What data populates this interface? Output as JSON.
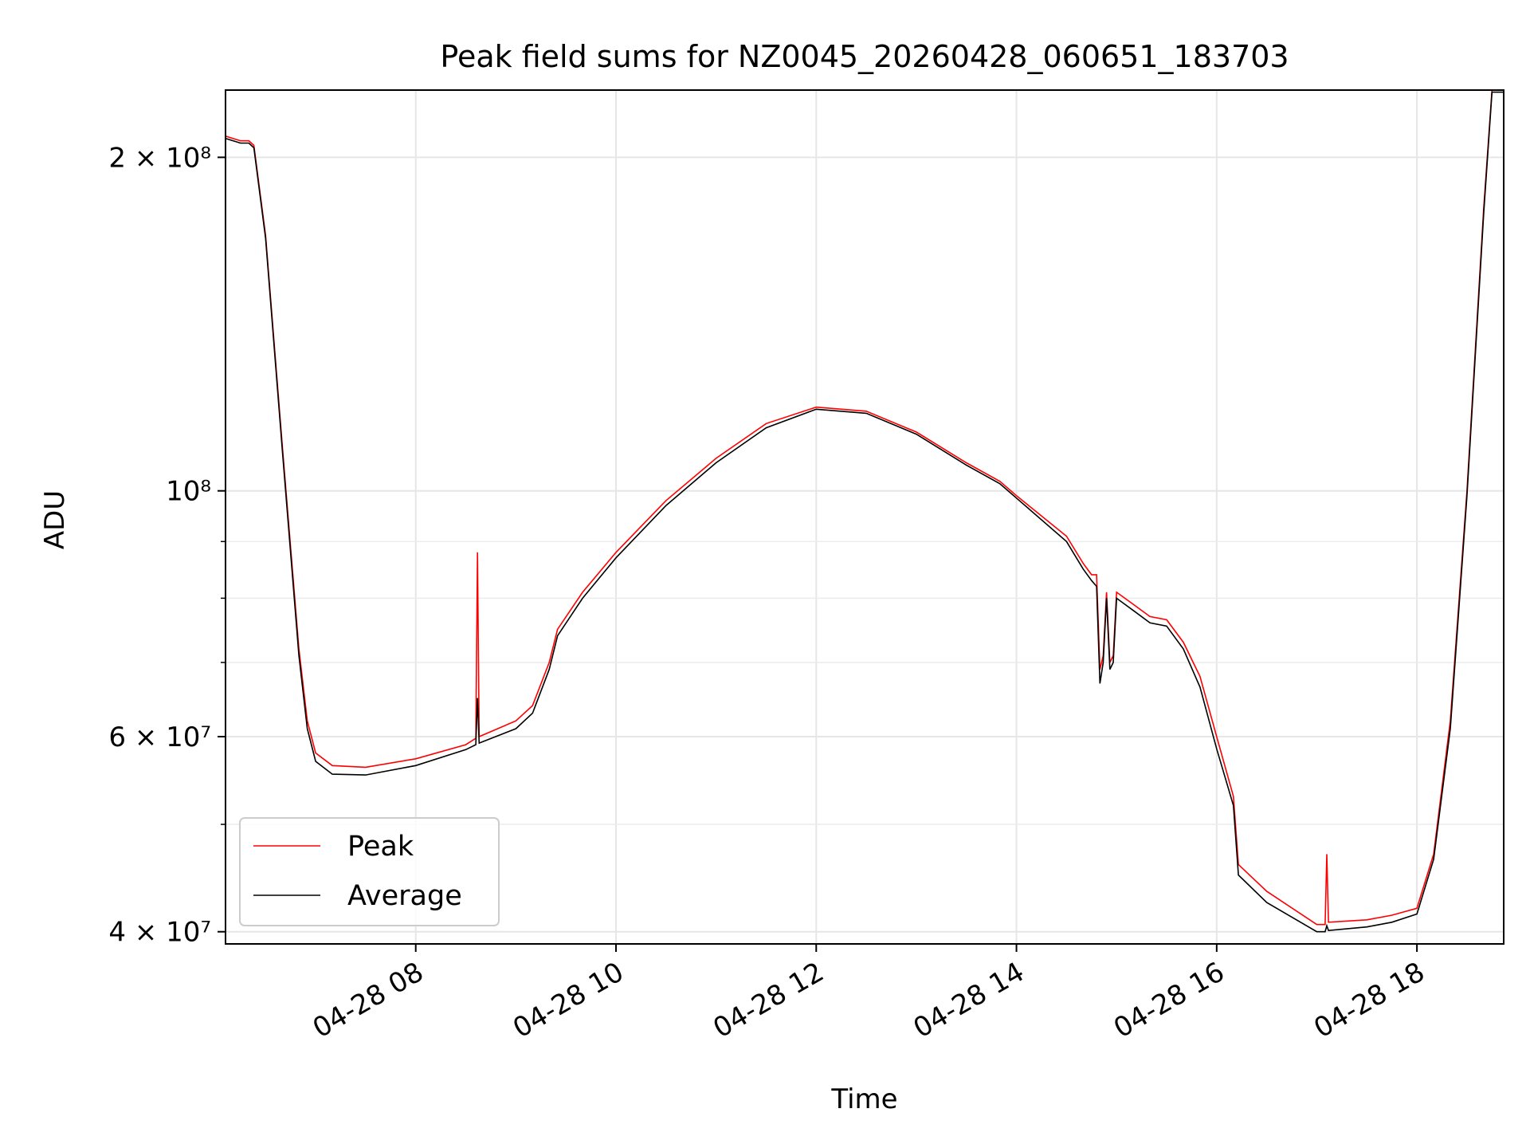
{
  "chart_data": {
    "type": "line",
    "title": "Peak field sums for NZ0045_20260428_060651_183703",
    "xlabel": "Time",
    "ylabel": "ADU",
    "yscale": "log",
    "xlim": [
      "2026-04-28 06:06",
      "2026-04-28 18:52"
    ],
    "ylim": [
      39000000,
      230000000
    ],
    "grid": true,
    "legend_position": "lower-left",
    "xticks": [
      {
        "t": "2026-04-28 08:00",
        "label": "04-28 08"
      },
      {
        "t": "2026-04-28 10:00",
        "label": "04-28 10"
      },
      {
        "t": "2026-04-28 12:00",
        "label": "04-28 12"
      },
      {
        "t": "2026-04-28 14:00",
        "label": "04-28 14"
      },
      {
        "t": "2026-04-28 16:00",
        "label": "04-28 16"
      },
      {
        "t": "2026-04-28 18:00",
        "label": "04-28 18"
      }
    ],
    "yticks_major": [
      {
        "v": 40000000,
        "label": "4 × 10⁷"
      },
      {
        "v": 60000000,
        "label": "6 × 10⁷"
      },
      {
        "v": 100000000,
        "label": "10⁸"
      },
      {
        "v": 200000000,
        "label": "2 × 10⁸"
      }
    ],
    "yticks_minor": [
      50000000,
      70000000,
      80000000,
      90000000
    ],
    "series": [
      {
        "name": "Peak",
        "color": "#ff0000",
        "points": [
          [
            "2026-04-28 06:06",
            209000000
          ],
          [
            "2026-04-28 06:15",
            207000000
          ],
          [
            "2026-04-28 06:20",
            207000000
          ],
          [
            "2026-04-28 06:23",
            205000000
          ],
          [
            "2026-04-28 06:30",
            170000000
          ],
          [
            "2026-04-28 06:40",
            110000000
          ],
          [
            "2026-04-28 06:50",
            72000000
          ],
          [
            "2026-04-28 06:55",
            62000000
          ],
          [
            "2026-04-28 07:00",
            58000000
          ],
          [
            "2026-04-28 07:10",
            56500000
          ],
          [
            "2026-04-28 07:30",
            56300000
          ],
          [
            "2026-04-28 08:00",
            57300000
          ],
          [
            "2026-04-28 08:30",
            59000000
          ],
          [
            "2026-04-28 08:36",
            59800000
          ],
          [
            "2026-04-28 08:37",
            88000000
          ],
          [
            "2026-04-28 08:38",
            60000000
          ],
          [
            "2026-04-28 09:00",
            62000000
          ],
          [
            "2026-04-28 09:10",
            64000000
          ],
          [
            "2026-04-28 09:20",
            70000000
          ],
          [
            "2026-04-28 09:25",
            75000000
          ],
          [
            "2026-04-28 09:40",
            81000000
          ],
          [
            "2026-04-28 10:00",
            88000000
          ],
          [
            "2026-04-28 10:30",
            98000000
          ],
          [
            "2026-04-28 11:00",
            107000000
          ],
          [
            "2026-04-28 11:30",
            115000000
          ],
          [
            "2026-04-28 12:00",
            119000000
          ],
          [
            "2026-04-28 12:30",
            118000000
          ],
          [
            "2026-04-28 13:00",
            113000000
          ],
          [
            "2026-04-28 13:30",
            106000000
          ],
          [
            "2026-04-28 13:50",
            102000000
          ],
          [
            "2026-04-28 14:00",
            99000000
          ],
          [
            "2026-04-28 14:30",
            91000000
          ],
          [
            "2026-04-28 14:40",
            86000000
          ],
          [
            "2026-04-28 14:45",
            84000000
          ],
          [
            "2026-04-28 14:48",
            84000000
          ],
          [
            "2026-04-28 14:50",
            69000000
          ],
          [
            "2026-04-28 14:52",
            71000000
          ],
          [
            "2026-04-28 14:54",
            81000000
          ],
          [
            "2026-04-28 14:56",
            70000000
          ],
          [
            "2026-04-28 14:58",
            71000000
          ],
          [
            "2026-04-28 15:00",
            81000000
          ],
          [
            "2026-04-28 15:10",
            79000000
          ],
          [
            "2026-04-28 15:20",
            77000000
          ],
          [
            "2026-04-28 15:30",
            76500000
          ],
          [
            "2026-04-28 15:40",
            73000000
          ],
          [
            "2026-04-28 15:50",
            68000000
          ],
          [
            "2026-04-28 16:00",
            60000000
          ],
          [
            "2026-04-28 16:10",
            53000000
          ],
          [
            "2026-04-28 16:13",
            46000000
          ],
          [
            "2026-04-28 16:30",
            43500000
          ],
          [
            "2026-04-28 17:00",
            40600000
          ],
          [
            "2026-04-28 17:05",
            40600000
          ],
          [
            "2026-04-28 17:06",
            47000000
          ],
          [
            "2026-04-28 17:07",
            40800000
          ],
          [
            "2026-04-28 17:30",
            41000000
          ],
          [
            "2026-04-28 17:45",
            41400000
          ],
          [
            "2026-04-28 18:00",
            42000000
          ],
          [
            "2026-04-28 18:10",
            47000000
          ],
          [
            "2026-04-28 18:20",
            62000000
          ],
          [
            "2026-04-28 18:30",
            100000000
          ],
          [
            "2026-04-28 18:40",
            180000000
          ],
          [
            "2026-04-28 18:45",
            230000000
          ],
          [
            "2026-04-28 18:52",
            230000000
          ]
        ]
      },
      {
        "name": "Average",
        "color": "#000000",
        "points": [
          [
            "2026-04-28 06:06",
            208000000
          ],
          [
            "2026-04-28 06:15",
            206000000
          ],
          [
            "2026-04-28 06:20",
            206000000
          ],
          [
            "2026-04-28 06:23",
            204000000
          ],
          [
            "2026-04-28 06:30",
            169000000
          ],
          [
            "2026-04-28 06:40",
            109000000
          ],
          [
            "2026-04-28 06:50",
            71000000
          ],
          [
            "2026-04-28 06:55",
            61000000
          ],
          [
            "2026-04-28 07:00",
            57000000
          ],
          [
            "2026-04-28 07:10",
            55500000
          ],
          [
            "2026-04-28 07:30",
            55400000
          ],
          [
            "2026-04-28 08:00",
            56500000
          ],
          [
            "2026-04-28 08:30",
            58400000
          ],
          [
            "2026-04-28 08:36",
            59000000
          ],
          [
            "2026-04-28 08:37",
            65000000
          ],
          [
            "2026-04-28 08:38",
            59200000
          ],
          [
            "2026-04-28 09:00",
            61000000
          ],
          [
            "2026-04-28 09:10",
            63000000
          ],
          [
            "2026-04-28 09:20",
            69000000
          ],
          [
            "2026-04-28 09:25",
            74000000
          ],
          [
            "2026-04-28 09:40",
            80000000
          ],
          [
            "2026-04-28 10:00",
            87000000
          ],
          [
            "2026-04-28 10:30",
            97000000
          ],
          [
            "2026-04-28 11:00",
            106000000
          ],
          [
            "2026-04-28 11:30",
            114000000
          ],
          [
            "2026-04-28 12:00",
            118500000
          ],
          [
            "2026-04-28 12:30",
            117500000
          ],
          [
            "2026-04-28 13:00",
            112500000
          ],
          [
            "2026-04-28 13:30",
            105500000
          ],
          [
            "2026-04-28 13:50",
            101500000
          ],
          [
            "2026-04-28 14:00",
            98500000
          ],
          [
            "2026-04-28 14:30",
            90000000
          ],
          [
            "2026-04-28 14:40",
            85000000
          ],
          [
            "2026-04-28 14:45",
            83000000
          ],
          [
            "2026-04-28 14:48",
            82000000
          ],
          [
            "2026-04-28 14:50",
            67000000
          ],
          [
            "2026-04-28 14:52",
            70000000
          ],
          [
            "2026-04-28 14:54",
            80000000
          ],
          [
            "2026-04-28 14:56",
            69000000
          ],
          [
            "2026-04-28 14:58",
            70000000
          ],
          [
            "2026-04-28 15:00",
            80000000
          ],
          [
            "2026-04-28 15:10",
            78000000
          ],
          [
            "2026-04-28 15:20",
            76000000
          ],
          [
            "2026-04-28 15:30",
            75500000
          ],
          [
            "2026-04-28 15:40",
            72000000
          ],
          [
            "2026-04-28 15:50",
            66500000
          ],
          [
            "2026-04-28 16:00",
            58500000
          ],
          [
            "2026-04-28 16:10",
            52000000
          ],
          [
            "2026-04-28 16:13",
            45000000
          ],
          [
            "2026-04-28 16:30",
            42500000
          ],
          [
            "2026-04-28 17:00",
            40000000
          ],
          [
            "2026-04-28 17:05",
            40000000
          ],
          [
            "2026-04-28 17:06",
            40500000
          ],
          [
            "2026-04-28 17:07",
            40100000
          ],
          [
            "2026-04-28 17:30",
            40400000
          ],
          [
            "2026-04-28 17:45",
            40800000
          ],
          [
            "2026-04-28 18:00",
            41500000
          ],
          [
            "2026-04-28 18:10",
            46500000
          ],
          [
            "2026-04-28 18:20",
            61000000
          ],
          [
            "2026-04-28 18:30",
            99000000
          ],
          [
            "2026-04-28 18:40",
            178000000
          ],
          [
            "2026-04-28 18:45",
            229000000
          ],
          [
            "2026-04-28 18:52",
            229000000
          ]
        ]
      }
    ]
  }
}
